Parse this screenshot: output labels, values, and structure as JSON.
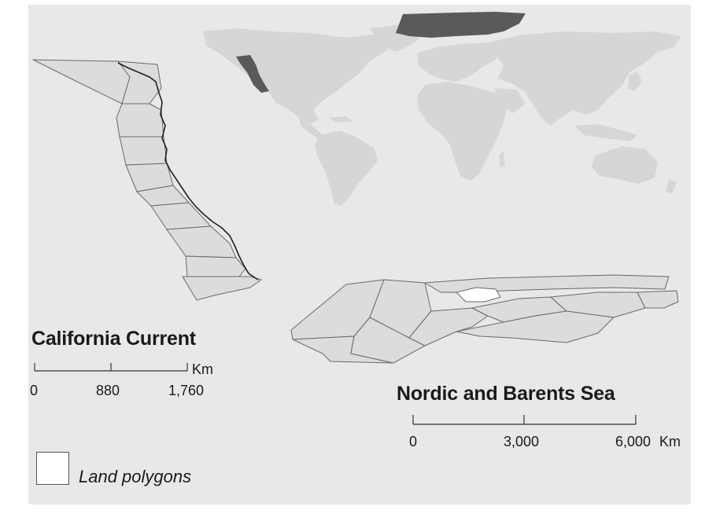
{
  "inset_world": {
    "highlight_color": "#5a5a5a",
    "land_color": "#d6d6d6",
    "highlighted_regions": [
      "California Current",
      "Nordic and Barents Sea"
    ]
  },
  "california_current": {
    "title": "California Current",
    "scale_ticks": [
      "0",
      "880",
      "1,760"
    ],
    "scale_unit": "Km"
  },
  "nordic_barents": {
    "title": "Nordic and Barents Sea",
    "scale_ticks": [
      "0",
      "3,000",
      "6,000"
    ],
    "scale_unit": "Km"
  },
  "legend": {
    "label": "Land polygons",
    "swatch_color": "#ffffff"
  },
  "colors": {
    "background": "#e8e8e8",
    "polygon_fill": "#dcdcdc",
    "polygon_stroke": "#6a6a6a",
    "coastline": "#222222"
  }
}
